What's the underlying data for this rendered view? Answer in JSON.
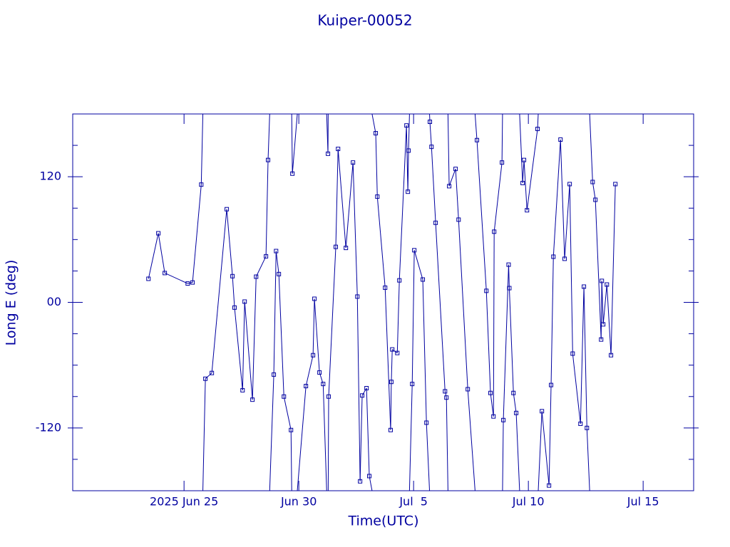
{
  "chart_data": {
    "type": "line",
    "title": "Kuiper-00052",
    "x_label": "Time(UTC)",
    "y_label": "Long E (deg)",
    "color": "#0000a0",
    "marker": "square",
    "wrap": true,
    "xlim": [
      171.15,
      198.2
    ],
    "xticks": [
      {
        "value": 176,
        "label": "2025 Jun 25"
      },
      {
        "value": 181,
        "label": "Jun 30"
      },
      {
        "value": 186,
        "label": "Jul  5"
      },
      {
        "value": 191,
        "label": "Jul 10"
      },
      {
        "value": 196,
        "label": "Jul 15"
      }
    ],
    "ylim": [
      -180,
      180
    ],
    "yticks": [
      120,
      {
        "value": 0,
        "label": "00"
      },
      -120
    ],
    "yminor": [
      -150,
      -90,
      -60,
      -30,
      30,
      60,
      90,
      150
    ],
    "x": [
      174.45,
      174.88,
      175.16,
      176.16,
      176.37,
      176.75,
      176.93,
      177.21,
      177.86,
      178.11,
      178.2,
      178.55,
      178.64,
      178.98,
      179.14,
      179.57,
      179.66,
      179.91,
      180.01,
      180.13,
      180.35,
      180.66,
      180.72,
      181.31,
      181.62,
      181.68,
      181.9,
      182.06,
      182.27,
      182.3,
      182.61,
      182.71,
      183.05,
      183.36,
      183.55,
      183.67,
      183.76,
      183.95,
      184.07,
      184.35,
      184.42,
      184.76,
      185.0,
      185.03,
      185.07,
      185.29,
      185.38,
      185.69,
      185.75,
      185.78,
      185.94,
      186.03,
      186.4,
      186.56,
      186.71,
      186.78,
      186.96,
      187.37,
      187.43,
      187.55,
      187.83,
      187.96,
      188.36,
      188.76,
      189.17,
      189.35,
      189.48,
      189.51,
      189.85,
      189.91,
      190.14,
      190.17,
      190.35,
      190.47,
      190.75,
      190.81,
      190.94,
      191.4,
      191.59,
      191.9,
      191.99,
      192.09,
      192.4,
      192.58,
      192.8,
      192.93,
      193.27,
      193.42,
      193.55,
      193.8,
      193.92,
      194.17,
      194.2,
      194.26,
      194.42,
      194.6,
      194.79
    ],
    "values": [
      22.5,
      66,
      28,
      18,
      19,
      112.5,
      -73,
      -67.5,
      89,
      25,
      -5,
      -84,
      0.7,
      -93,
      24.5,
      44,
      136,
      -69,
      49,
      27,
      -90,
      -122,
      123,
      -80,
      -50.5,
      3.4,
      -67,
      -78,
      142,
      -90,
      53,
      146.6,
      52,
      133.6,
      5.5,
      -171,
      -89,
      -82,
      -166,
      161.6,
      101,
      14,
      -122,
      -76,
      -45,
      -48.4,
      21,
      169,
      105.7,
      145,
      -78,
      49.8,
      21.8,
      -115,
      172.5,
      148.6,
      76,
      -85,
      -91,
      111,
      127.5,
      79,
      -83,
      155,
      11,
      -86.6,
      -109,
      67.5,
      133.6,
      -112.5,
      36,
      13.6,
      -86.6,
      -105.7,
      114,
      136,
      88,
      165.7,
      -104,
      -175,
      -79,
      43.6,
      155.5,
      41.6,
      113,
      -49,
      -116,
      15,
      -120,
      115,
      98,
      -35.5,
      20.5,
      -21,
      17,
      -50.5,
      113
    ]
  }
}
